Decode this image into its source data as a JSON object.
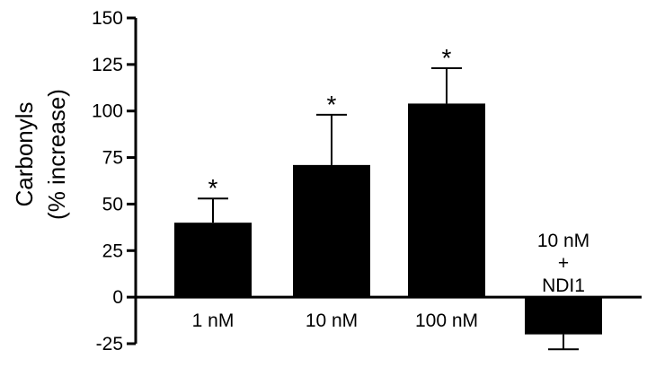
{
  "chart_data": {
    "type": "bar",
    "ylabel_line1": "Carbonyls",
    "ylabel_line2": "(% increase)",
    "xlabel": "",
    "ylim": [
      -25,
      150
    ],
    "yticks": [
      -25,
      0,
      25,
      50,
      75,
      100,
      125,
      150
    ],
    "ytick_labels": [
      "-25",
      "0",
      "25",
      "50",
      "75",
      "100",
      "125",
      "150"
    ],
    "categories": [
      {
        "lines": [
          "1 nM"
        ]
      },
      {
        "lines": [
          "10 nM"
        ]
      },
      {
        "lines": [
          "100 nM"
        ]
      },
      {
        "lines": [
          "10 nM",
          "+",
          "NDI1"
        ]
      }
    ],
    "values": [
      40,
      71,
      104,
      -20
    ],
    "errors": [
      13,
      27,
      19,
      8
    ],
    "significance": [
      "*",
      "*",
      "*",
      ""
    ],
    "bar_color": "#000000",
    "axis_color": "#000000",
    "grid": false
  }
}
